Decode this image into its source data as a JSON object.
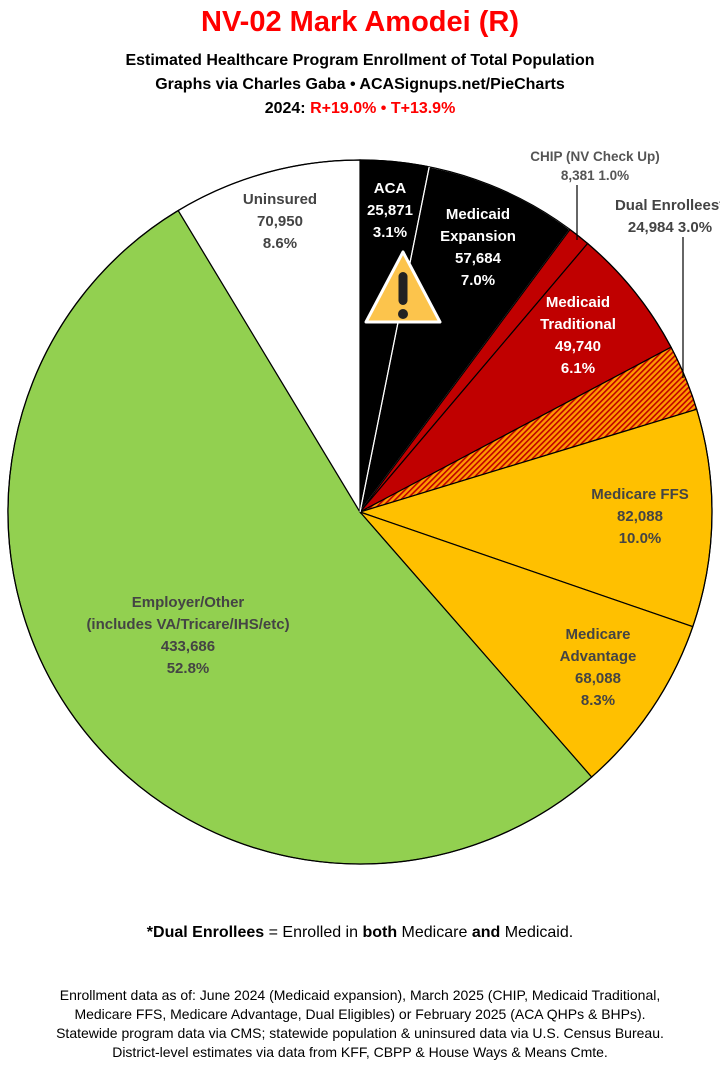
{
  "header": {
    "title": "NV-02 Mark Amodei (R)",
    "subtitle": "Estimated Healthcare Program Enrollment of Total Population",
    "credit": "Graphs via Charles Gaba  •  ACASignups.net/PieCharts",
    "year_label": "2024:",
    "margins": "R+19.0%  • T+13.9%"
  },
  "chart_data": {
    "type": "pie",
    "start": "top, clockwise",
    "slices": [
      {
        "label": "ACA",
        "value": 25871,
        "pct": "3.1%",
        "color": "#000000",
        "lines": [
          "ACA",
          "25,871",
          "3.1%"
        ]
      },
      {
        "label": "Medicaid Expansion",
        "value": 57684,
        "pct": "7.0%",
        "color": "#000000",
        "lines": [
          "Medicaid",
          "Expansion",
          "57,684",
          "7.0%"
        ]
      },
      {
        "label": "CHIP (NV Check Up)",
        "value": 8381,
        "pct": "1.0%",
        "color": "#c00000",
        "lines": [
          "CHIP (NV Check Up)",
          "8,381 1.0%"
        ]
      },
      {
        "label": "Medicaid Traditional",
        "value": 49740,
        "pct": "6.1%",
        "color": "#c00000",
        "lines": [
          "Medicaid",
          "Traditional",
          "49,740",
          "6.1%"
        ]
      },
      {
        "label": "Dual Enrollees*",
        "value": 24984,
        "pct": "3.0%",
        "color": "hatch",
        "lines": [
          "Dual Enrollees*",
          "24,984 3.0%"
        ]
      },
      {
        "label": "Medicare FFS",
        "value": 82088,
        "pct": "10.0%",
        "color": "#ffc000",
        "lines": [
          "Medicare FFS",
          "82,088",
          "10.0%"
        ]
      },
      {
        "label": "Medicare Advantage",
        "value": 68088,
        "pct": "8.3%",
        "color": "#ffc000",
        "lines": [
          "Medicare",
          "Advantage",
          "68,088",
          "8.3%"
        ]
      },
      {
        "label": "Employer/Other (includes VA/Tricare/IHS/etc)",
        "value": 433686,
        "pct": "52.8%",
        "color": "#92d050",
        "lines": [
          "Employer/Other",
          "(includes VA/Tricare/IHS/etc)",
          "433,686",
          "52.8%"
        ]
      },
      {
        "label": "Uninsured",
        "value": 70950,
        "pct": "8.6%",
        "color": "#ffffff",
        "lines": [
          "Uninsured",
          "70,950",
          "8.6%"
        ]
      }
    ],
    "annotation_icon": "warning-icon"
  },
  "note": {
    "pre": "*Dual Enrollees",
    "mid1": " = Enrolled in ",
    "b1": "both",
    "mid2": " Medicare ",
    "b2": "and",
    "post": " Medicaid."
  },
  "footer": [
    "Enrollment data as of: June 2024 (Medicaid expansion), March 2025 (CHIP, Medicaid Traditional,",
    "Medicare FFS, Medicare Advantage, Dual Eligibles) or February 2025 (ACA QHPs & BHPs).",
    "Statewide program data via CMS; statewide population & uninsured data via U.S. Census Bureau.",
    "District-level estimates via data from KFF, CBPP & House Ways & Means Cmte."
  ]
}
